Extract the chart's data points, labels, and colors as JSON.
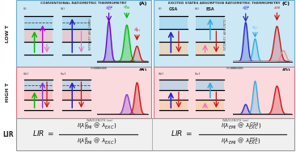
{
  "title_left": "CONVENTIONAL RATIOMETRIC THERMOMETRY",
  "title_right": "EXCITED STATES ABSORPTION RATIOMETRIC THERMOMETRY",
  "label_lowT": "LOW T",
  "label_highT": "HIGH T",
  "label_LIR": "LIR",
  "bg_blue": "#cce8f4",
  "bg_pink": "#fadadd",
  "bg_lir": "#f0f0f0",
  "border_blue": "#6aacce",
  "border_pink": "#e07080",
  "border_gray": "#999999",
  "fill_blue_band": "#88ccee",
  "fill_pink_band": "#ffaaaa",
  "fill_orange_band": "#ffcc99",
  "col_green": "#00bb00",
  "col_blue_dark": "#2222cc",
  "col_red": "#cc1111",
  "col_pink": "#ff66bb",
  "col_purple": "#8833cc",
  "col_cyan": "#33aadd",
  "col_violet": "#6600cc",
  "col_lightblue": "#66aaff",
  "col_magenta": "#cc00cc"
}
